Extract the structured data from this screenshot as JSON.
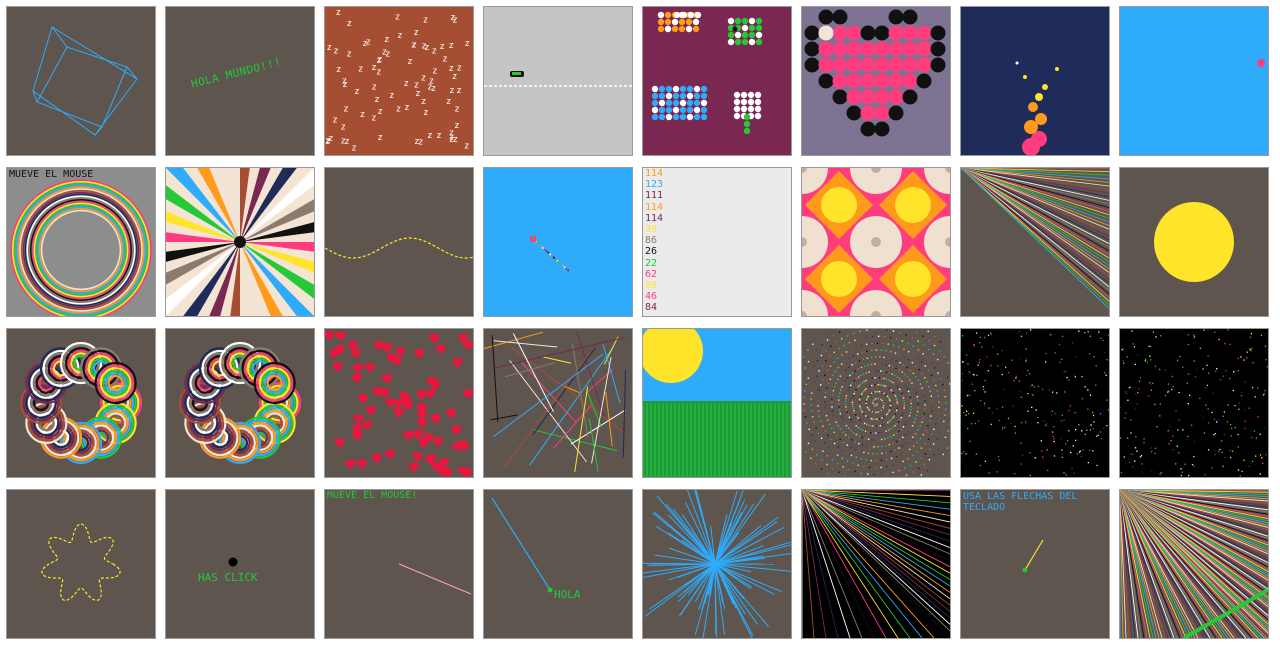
{
  "gallery": {
    "colors": {
      "bg": "#5d554e",
      "green": "#25c837",
      "blue": "#2fabfb",
      "pink": "#ff3c7e",
      "yellow": "#ffe42a",
      "orange": "#ff9a1a",
      "gray": "#c5c5c7",
      "light": "#ebebeb",
      "navy": "#1f2b58",
      "plum": "#7a2752",
      "rust": "#a64e32",
      "lavender": "#7e7293"
    },
    "sketches": [
      {
        "name": "rotating-cube",
        "theme": "blue-wireframe"
      },
      {
        "name": "hola-mundo",
        "text": "HOLA MUNDO!!!"
      },
      {
        "name": "z-pattern",
        "glyph": "z"
      },
      {
        "name": "car-road",
        "theme": "side-view"
      },
      {
        "name": "pixel-sprites",
        "theme": "birds-and-flowers"
      },
      {
        "name": "pixel-heart",
        "theme": "dots"
      },
      {
        "name": "fire-particles",
        "theme": "navy"
      },
      {
        "name": "bouncing-ball",
        "theme": "sky"
      },
      {
        "name": "concentric-rings",
        "text": "MUEVE EL MOUSE"
      },
      {
        "name": "color-spiral",
        "theme": "rays"
      },
      {
        "name": "sine-wave",
        "theme": "dashed"
      },
      {
        "name": "mouse-trail",
        "theme": "sky"
      },
      {
        "name": "number-list",
        "numbers": [
          "114",
          "123",
          "111",
          "114",
          "114",
          "39",
          "86",
          "26",
          "22",
          "62",
          "69",
          "46",
          "84"
        ]
      },
      {
        "name": "tile-pattern",
        "theme": "retro"
      },
      {
        "name": "color-rays",
        "theme": "corner"
      },
      {
        "name": "yellow-circle",
        "theme": "sun"
      },
      {
        "name": "rainbow-wreath-a",
        "theme": "rings"
      },
      {
        "name": "rainbow-wreath-b",
        "theme": "rings"
      },
      {
        "name": "hearts",
        "theme": "red"
      },
      {
        "name": "random-lines",
        "theme": "multicolor"
      },
      {
        "name": "landscape",
        "theme": "sun-and-field"
      },
      {
        "name": "spiral-dots",
        "theme": "rainbow"
      },
      {
        "name": "starfield-a",
        "theme": "dots"
      },
      {
        "name": "starfield-b",
        "theme": "dots"
      },
      {
        "name": "wavy-flower",
        "theme": "dashed"
      },
      {
        "name": "click-demo",
        "text": "HAS CLICK"
      },
      {
        "name": "mouse-line",
        "text": "MUEVE EL MOUSE!"
      },
      {
        "name": "hola-line",
        "text": "HOLA"
      },
      {
        "name": "blue-burst",
        "theme": "rays"
      },
      {
        "name": "black-rays",
        "theme": "corner"
      },
      {
        "name": "arrow-keys",
        "text": "USA LAS FLECHAS DEL\nTECLADO"
      },
      {
        "name": "dense-rays",
        "theme": "corner"
      }
    ]
  }
}
